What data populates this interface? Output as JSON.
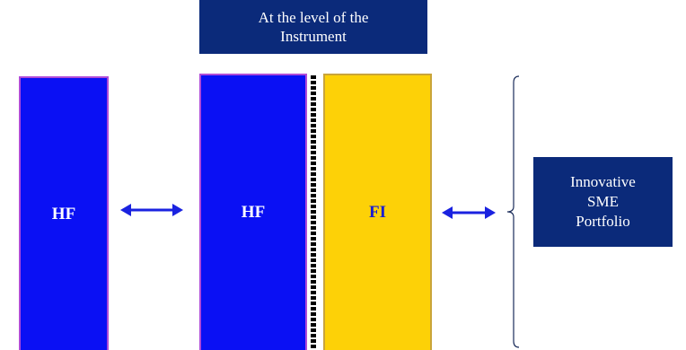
{
  "header": {
    "label": "At the level of the\nInstrument"
  },
  "bars": {
    "hf_left": "HF",
    "hf_mid": "HF",
    "fi": "FI"
  },
  "portfolio": {
    "label": "Innovative\nSME\nPortfolio"
  },
  "colors": {
    "hf_fill": "#0a10f4",
    "hf_border": "#b04bd8",
    "fi_fill": "#fdd107",
    "fi_text": "#1b1fcf",
    "box_fill": "#0b2a7a",
    "arrow": "#1a22e0"
  },
  "icons": {
    "left_arrow": "double-headed-arrow-icon",
    "right_arrow": "double-headed-arrow-icon",
    "brace": "curly-brace-icon"
  }
}
